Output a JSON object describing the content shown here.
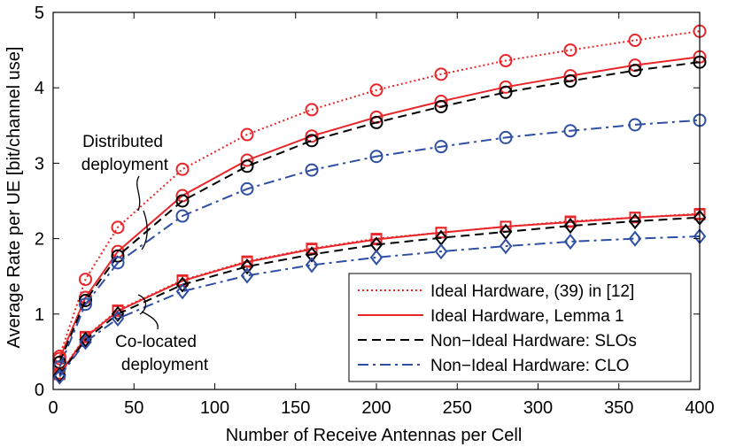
{
  "chart_data": {
    "type": "line",
    "title": "",
    "xlabel": "Number of Receive Antennas per Cell",
    "ylabel": "Average Rate per UE [bit/channel use]",
    "xlim": [
      0,
      400
    ],
    "ylim": [
      0,
      5
    ],
    "xticks": [
      0,
      50,
      100,
      150,
      200,
      250,
      300,
      350,
      400
    ],
    "yticks": [
      0,
      1,
      2,
      3,
      4,
      5
    ],
    "grid": false,
    "legend_position": "bottom-right",
    "x": [
      4,
      20,
      40,
      80,
      120,
      160,
      200,
      240,
      280,
      320,
      360,
      400
    ],
    "series": [
      {
        "name": "Ideal Hardware, (39) in [12]",
        "deployment": "distributed",
        "color": "#e8262a",
        "dash": "dotted",
        "marker": "circle",
        "values": [
          0.44,
          1.46,
          2.15,
          2.92,
          3.38,
          3.71,
          3.97,
          4.18,
          4.36,
          4.5,
          4.63,
          4.75
        ]
      },
      {
        "name": "Ideal Hardware, Lemma 1",
        "deployment": "distributed",
        "color": "#e8262a",
        "dash": "solid",
        "marker": "circle",
        "values": [
          0.41,
          1.22,
          1.83,
          2.57,
          3.04,
          3.36,
          3.61,
          3.82,
          4.01,
          4.16,
          4.3,
          4.41
        ]
      },
      {
        "name": "Non-Ideal Hardware: SLOs",
        "deployment": "distributed",
        "color": "#000000",
        "dash": "dashed",
        "marker": "circle",
        "values": [
          0.36,
          1.18,
          1.77,
          2.5,
          2.96,
          3.3,
          3.54,
          3.75,
          3.94,
          4.09,
          4.23,
          4.34
        ]
      },
      {
        "name": "Non-Ideal Hardware: CLO",
        "deployment": "distributed",
        "color": "#2e4fa3",
        "dash": "dashdot",
        "marker": "circle",
        "values": [
          0.3,
          1.13,
          1.68,
          2.3,
          2.66,
          2.91,
          3.09,
          3.22,
          3.34,
          3.43,
          3.51,
          3.57
        ]
      },
      {
        "name": "Ideal Hardware, (39) in [12]",
        "deployment": "co-located",
        "color": "#e8262a",
        "dash": "dotted",
        "marker": "square",
        "values": [
          0.21,
          0.7,
          1.05,
          1.45,
          1.7,
          1.87,
          2.0,
          2.08,
          2.16,
          2.23,
          2.28,
          2.33
        ]
      },
      {
        "name": "Ideal Hardware, Lemma 1",
        "deployment": "co-located",
        "color": "#e8262a",
        "dash": "solid",
        "marker": "square",
        "values": [
          0.2,
          0.69,
          1.04,
          1.44,
          1.69,
          1.86,
          1.99,
          2.08,
          2.16,
          2.22,
          2.28,
          2.32
        ]
      },
      {
        "name": "Non-Ideal Hardware: SLOs",
        "deployment": "co-located",
        "color": "#000000",
        "dash": "dashed",
        "marker": "diamond",
        "values": [
          0.19,
          0.66,
          1.0,
          1.39,
          1.63,
          1.79,
          1.92,
          2.01,
          2.09,
          2.17,
          2.23,
          2.28
        ]
      },
      {
        "name": "Non-Ideal Hardware: CLO",
        "deployment": "co-located",
        "color": "#2e4fa3",
        "dash": "dashdot",
        "marker": "diamond",
        "values": [
          0.17,
          0.63,
          0.94,
          1.3,
          1.51,
          1.65,
          1.75,
          1.83,
          1.9,
          1.96,
          2.0,
          2.03
        ]
      }
    ],
    "legend": [
      {
        "label": "Ideal Hardware, (39) in [12]",
        "color": "#e8262a",
        "dash": "dotted"
      },
      {
        "label": "Ideal Hardware, Lemma 1",
        "color": "#e8262a",
        "dash": "solid"
      },
      {
        "label": "Non−Ideal Hardware: SLOs",
        "color": "#000000",
        "dash": "dashed"
      },
      {
        "label": "Non−Ideal Hardware: CLO",
        "color": "#2e4fa3",
        "dash": "dashdot"
      }
    ],
    "annotations": [
      {
        "name": "distributed",
        "lines": [
          "Distributed",
          "deployment"
        ]
      },
      {
        "name": "colocated",
        "lines": [
          "Co-located",
          "deployment"
        ]
      }
    ]
  }
}
